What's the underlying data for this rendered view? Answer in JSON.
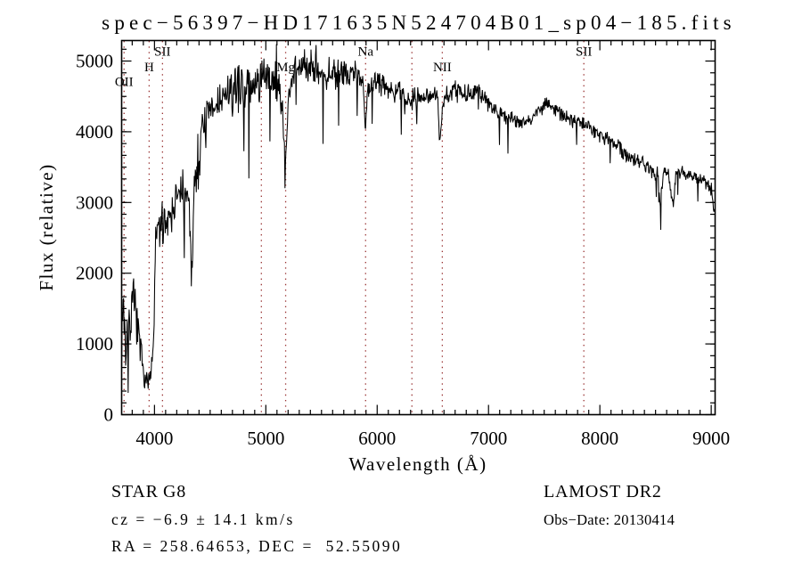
{
  "title": "spec−56397−HD171635N524704B01_sp04−185.fits",
  "chart_data": {
    "type": "line",
    "title": "spec−56397−HD171635N524704B01_sp04−185.fits",
    "xlabel": "Wavelength (Å)",
    "ylabel": "Flux (relative)",
    "xlim": [
      3705,
      9035
    ],
    "ylim": [
      0,
      5290
    ],
    "grid": false,
    "legend": "none",
    "x_major_ticks": [
      4000,
      5000,
      6000,
      7000,
      8000,
      9000
    ],
    "x_minor_step": 100,
    "y_major_ticks": [
      0,
      1000,
      2000,
      3000,
      4000,
      5000
    ],
    "y_minor_divs": 6,
    "spectrum_color": "#000000",
    "marker_line_color": "#993333",
    "spectral_lines": [
      {
        "label": "OII",
        "wavelength": 3727,
        "row": 3
      },
      {
        "label": "H",
        "wavelength": 3952,
        "row": 2
      },
      {
        "label": "SII",
        "wavelength": 4072,
        "row": 1
      },
      {
        "label": "",
        "wavelength": 4960,
        "row": 0
      },
      {
        "label": "Mg",
        "wavelength": 5178,
        "row": 2
      },
      {
        "label": "Na",
        "wavelength": 5896,
        "row": 1
      },
      {
        "label": "",
        "wavelength": 6312,
        "row": 0
      },
      {
        "label": "NII",
        "wavelength": 6585,
        "row": 2
      },
      {
        "label": "SII",
        "wavelength": 7856,
        "row": 1
      }
    ],
    "spectrum_envelope": [
      [
        3705,
        1150
      ],
      [
        3718,
        1650
      ],
      [
        3730,
        1250
      ],
      [
        3745,
        900
      ],
      [
        3762,
        1150
      ],
      [
        3782,
        1400
      ],
      [
        3802,
        1500
      ],
      [
        3822,
        1550
      ],
      [
        3842,
        1250
      ],
      [
        3862,
        1000
      ],
      [
        3882,
        800
      ],
      [
        3902,
        650
      ],
      [
        3925,
        500
      ],
      [
        3950,
        480
      ],
      [
        3975,
        600
      ],
      [
        3995,
        1100
      ],
      [
        4008,
        2400
      ],
      [
        4030,
        2600
      ],
      [
        4070,
        2700
      ],
      [
        4110,
        2780
      ],
      [
        4150,
        2900
      ],
      [
        4200,
        3050
      ],
      [
        4250,
        3150
      ],
      [
        4290,
        3100
      ],
      [
        4318,
        2750
      ],
      [
        4333,
        1900
      ],
      [
        4350,
        3000
      ],
      [
        4382,
        3550
      ],
      [
        4422,
        3950
      ],
      [
        4470,
        4200
      ],
      [
        4530,
        4300
      ],
      [
        4590,
        4450
      ],
      [
        4650,
        4500
      ],
      [
        4710,
        4570
      ],
      [
        4770,
        4650
      ],
      [
        4830,
        4700
      ],
      [
        4861,
        4500
      ],
      [
        4892,
        4700
      ],
      [
        4932,
        4750
      ],
      [
        4972,
        4700
      ],
      [
        5012,
        4750
      ],
      [
        5062,
        4720
      ],
      [
        5112,
        4600
      ],
      [
        5150,
        4350
      ],
      [
        5172,
        3500
      ],
      [
        5186,
        3800
      ],
      [
        5206,
        4500
      ],
      [
        5240,
        4800
      ],
      [
        5292,
        4900
      ],
      [
        5352,
        4950
      ],
      [
        5412,
        4950
      ],
      [
        5472,
        4870
      ],
      [
        5532,
        4820
      ],
      [
        5592,
        4850
      ],
      [
        5652,
        4820
      ],
      [
        5712,
        4850
      ],
      [
        5772,
        4860
      ],
      [
        5832,
        4800
      ],
      [
        5875,
        4700
      ],
      [
        5893,
        3950
      ],
      [
        5912,
        4550
      ],
      [
        5952,
        4680
      ],
      [
        6012,
        4700
      ],
      [
        6072,
        4660
      ],
      [
        6132,
        4610
      ],
      [
        6192,
        4560
      ],
      [
        6252,
        4500
      ],
      [
        6292,
        4440
      ],
      [
        6332,
        4480
      ],
      [
        6392,
        4520
      ],
      [
        6452,
        4530
      ],
      [
        6512,
        4540
      ],
      [
        6545,
        4420
      ],
      [
        6563,
        3850
      ],
      [
        6586,
        4350
      ],
      [
        6622,
        4520
      ],
      [
        6682,
        4580
      ],
      [
        6742,
        4570
      ],
      [
        6802,
        4530
      ],
      [
        6862,
        4520
      ],
      [
        6922,
        4530
      ],
      [
        6972,
        4460
      ],
      [
        7032,
        4370
      ],
      [
        7092,
        4300
      ],
      [
        7152,
        4240
      ],
      [
        7212,
        4190
      ],
      [
        7272,
        4150
      ],
      [
        7332,
        4140
      ],
      [
        7392,
        4210
      ],
      [
        7452,
        4330
      ],
      [
        7512,
        4390
      ],
      [
        7562,
        4350
      ],
      [
        7622,
        4290
      ],
      [
        7682,
        4210
      ],
      [
        7742,
        4160
      ],
      [
        7802,
        4140
      ],
      [
        7862,
        4110
      ],
      [
        7922,
        4060
      ],
      [
        7982,
        3980
      ],
      [
        8042,
        3930
      ],
      [
        8102,
        3860
      ],
      [
        8162,
        3790
      ],
      [
        8222,
        3710
      ],
      [
        8282,
        3650
      ],
      [
        8342,
        3590
      ],
      [
        8402,
        3540
      ],
      [
        8462,
        3490
      ],
      [
        8498,
        3330
      ],
      [
        8516,
        3470
      ],
      [
        8542,
        2920
      ],
      [
        8566,
        3430
      ],
      [
        8612,
        3440
      ],
      [
        8660,
        2980
      ],
      [
        8686,
        3390
      ],
      [
        8742,
        3430
      ],
      [
        8802,
        3390
      ],
      [
        8862,
        3360
      ],
      [
        8922,
        3310
      ],
      [
        8962,
        3260
      ],
      [
        9002,
        3170
      ],
      [
        9035,
        2920
      ]
    ],
    "noise_amplitude": [
      [
        3705,
        480
      ],
      [
        3800,
        360
      ],
      [
        3880,
        250
      ],
      [
        3950,
        130
      ],
      [
        4005,
        300
      ],
      [
        4100,
        280
      ],
      [
        4250,
        300
      ],
      [
        4350,
        340
      ],
      [
        4450,
        340
      ],
      [
        4600,
        300
      ],
      [
        4750,
        300
      ],
      [
        4900,
        330
      ],
      [
        5050,
        300
      ],
      [
        5150,
        280
      ],
      [
        5250,
        240
      ],
      [
        5400,
        230
      ],
      [
        5600,
        210
      ],
      [
        5800,
        200
      ],
      [
        5893,
        130
      ],
      [
        6000,
        170
      ],
      [
        6200,
        150
      ],
      [
        6400,
        140
      ],
      [
        6563,
        120
      ],
      [
        6700,
        140
      ],
      [
        6900,
        130
      ],
      [
        7100,
        110
      ],
      [
        7300,
        105
      ],
      [
        7500,
        100
      ],
      [
        7700,
        95
      ],
      [
        7900,
        95
      ],
      [
        8100,
        95
      ],
      [
        8300,
        115
      ],
      [
        8500,
        115
      ],
      [
        8700,
        100
      ],
      [
        8900,
        100
      ],
      [
        9035,
        150
      ]
    ],
    "noise_seed": 7
  },
  "annotations": {
    "object_class": "STAR",
    "subclass": "G8",
    "survey": "LAMOST DR2",
    "cz_line": "cz = −6.9 ± 14.1 km/s",
    "obs_date_line": "Obs−Date: 20130414",
    "radec_line": "RA = 258.64653, DEC =  52.55090"
  }
}
